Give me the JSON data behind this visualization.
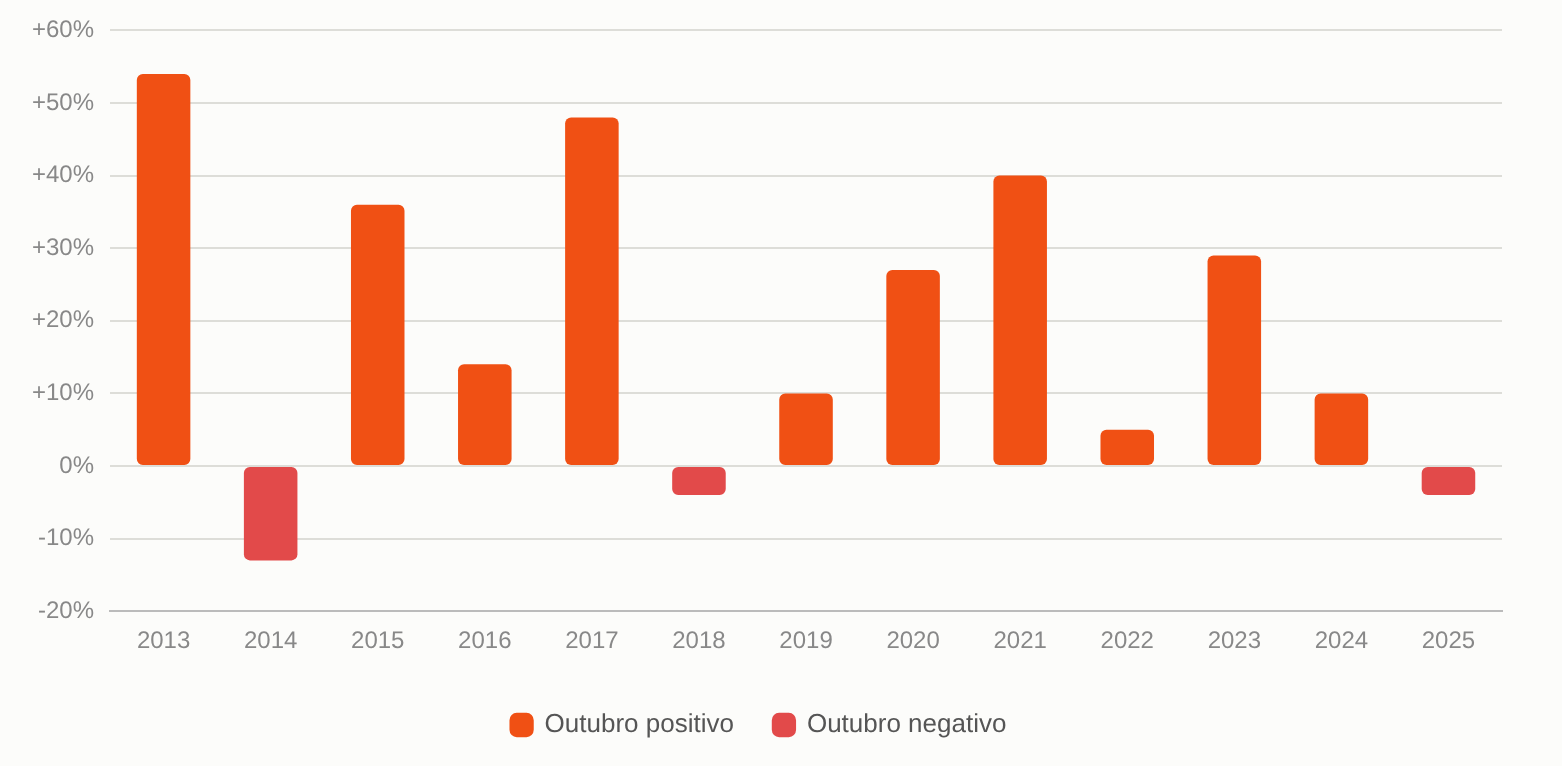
{
  "chart_data": {
    "type": "bar",
    "categories": [
      "2013",
      "2014",
      "2015",
      "2016",
      "2017",
      "2018",
      "2019",
      "2020",
      "2021",
      "2022",
      "2023",
      "2024",
      "2025"
    ],
    "series": [
      {
        "name": "Outubro positivo",
        "color": "#f05014",
        "values": [
          54,
          null,
          36,
          14,
          48,
          null,
          10,
          27,
          40,
          5,
          29,
          10,
          null
        ]
      },
      {
        "name": "Outubro negativo",
        "color": "#e24a4a",
        "values": [
          null,
          -13,
          null,
          null,
          null,
          -4,
          null,
          null,
          null,
          null,
          null,
          null,
          -4
        ]
      }
    ],
    "stacked": true,
    "ylim": [
      -20,
      60
    ],
    "yticks": [
      {
        "value": -20,
        "label": "-20%"
      },
      {
        "value": -10,
        "label": "-10%"
      },
      {
        "value": 0,
        "label": "0%"
      },
      {
        "value": 10,
        "label": "+10%"
      },
      {
        "value": 20,
        "label": "+20%"
      },
      {
        "value": 30,
        "label": "+30%"
      },
      {
        "value": 40,
        "label": "+40%"
      },
      {
        "value": 50,
        "label": "+50%"
      },
      {
        "value": 60,
        "label": "+60%"
      }
    ],
    "grid": "y",
    "legend": "bottom"
  }
}
